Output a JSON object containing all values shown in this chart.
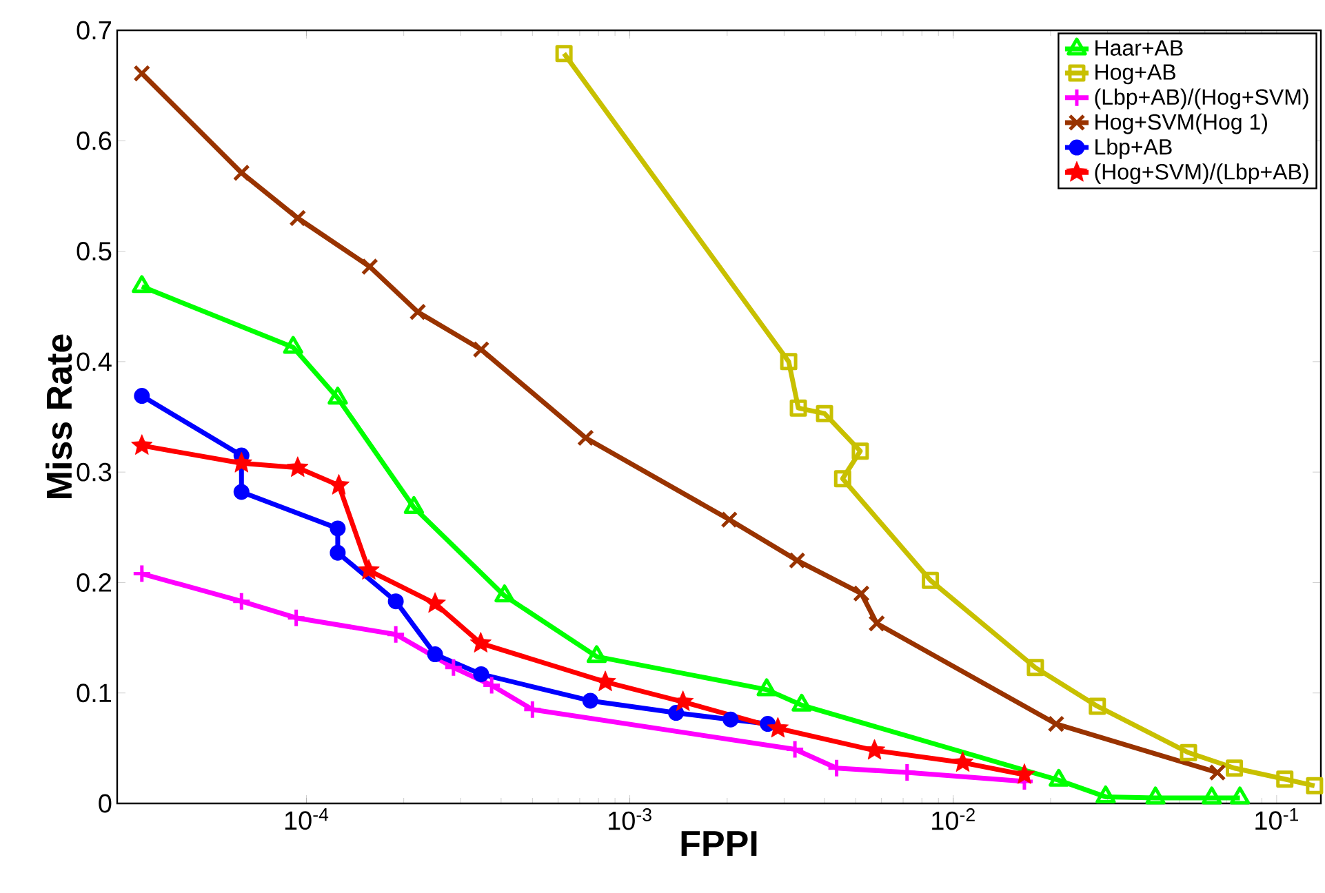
{
  "chart_data": {
    "type": "line",
    "xlabel": "FPPI",
    "ylabel": "Miss Rate",
    "log": "x",
    "xlim": [
      2.6e-05,
      0.137
    ],
    "ylim": [
      0,
      0.7
    ],
    "xticks": [
      {
        "value": 0.0001,
        "label": "10$^{-4}$"
      },
      {
        "value": 0.001,
        "label": "10$^{-3}$"
      },
      {
        "value": 0.01,
        "label": "10$^{-2}$"
      },
      {
        "value": 0.1,
        "label": "10$^{-1}$"
      }
    ],
    "yticks": [
      0,
      0.1,
      0.2,
      0.3,
      0.4,
      0.5,
      0.6,
      0.7
    ],
    "grid": false,
    "legend": "top right",
    "line_style": "solid",
    "series": [
      {
        "name": "Haar+AB",
        "color": "#00ff00",
        "marker": "triangle",
        "x": [
          3.1e-05,
          9.1e-05,
          0.000125,
          0.000215,
          0.00041,
          0.00079,
          0.00265,
          0.0034,
          0.0212,
          0.0296,
          0.0422,
          0.063,
          0.077
        ],
        "values": [
          0.468,
          0.413,
          0.367,
          0.268,
          0.188,
          0.133,
          0.103,
          0.089,
          0.021,
          0.006,
          0.005,
          0.005,
          0.005
        ]
      },
      {
        "name": "Hog+AB",
        "color": "#c8c000",
        "marker": "square",
        "x": [
          0.000626,
          0.0031,
          0.00332,
          0.004,
          0.00516,
          0.00455,
          0.0085,
          0.01795,
          0.0279,
          0.0534,
          0.074,
          0.106,
          0.131
        ],
        "values": [
          0.679,
          0.4,
          0.358,
          0.353,
          0.319,
          0.294,
          0.202,
          0.123,
          0.088,
          0.046,
          0.032,
          0.022,
          0.016
        ]
      },
      {
        "name": "(Lbp+AB)/(Hog+SVM)",
        "color": "#ff00ff",
        "marker": "plus",
        "x": [
          3.1e-05,
          6.3e-05,
          9.3e-05,
          0.000189,
          0.000285,
          0.000374,
          0.0005,
          0.00324,
          0.00436,
          0.0072,
          0.0166
        ],
        "values": [
          0.208,
          0.183,
          0.168,
          0.153,
          0.123,
          0.107,
          0.085,
          0.049,
          0.032,
          0.028,
          0.02
        ]
      },
      {
        "name": "Hog+SVM(Hog 1)",
        "color": "#993300",
        "marker": "cross",
        "x": [
          3.1e-05,
          6.3e-05,
          9.4e-05,
          0.000157,
          0.000221,
          0.000347,
          0.00073,
          0.00203,
          0.00329,
          0.0052,
          0.0058,
          0.0208,
          0.0656
        ],
        "values": [
          0.661,
          0.571,
          0.53,
          0.486,
          0.445,
          0.411,
          0.331,
          0.257,
          0.22,
          0.19,
          0.163,
          0.072,
          0.028
        ]
      },
      {
        "name": "Lbp+AB",
        "color": "#0000ff",
        "marker": "circle",
        "x": [
          3.1e-05,
          6.3e-05,
          6.3e-05,
          0.000125,
          0.000125,
          0.000189,
          0.00025,
          0.000347,
          0.000755,
          0.00139,
          0.00205,
          0.00267
        ],
        "values": [
          0.369,
          0.315,
          0.282,
          0.249,
          0.227,
          0.183,
          0.135,
          0.117,
          0.093,
          0.082,
          0.076,
          0.072
        ]
      },
      {
        "name": "(Hog+SVM)/(Lbp+AB)",
        "color": "#ff0000",
        "marker": "star",
        "x": [
          3.1e-05,
          6.3e-05,
          9.4e-05,
          0.000126,
          0.000156,
          0.00025,
          0.000346,
          0.00084,
          0.00146,
          0.00287,
          0.00571,
          0.0107,
          0.0166
        ],
        "values": [
          0.324,
          0.308,
          0.304,
          0.288,
          0.211,
          0.181,
          0.145,
          0.11,
          0.092,
          0.068,
          0.048,
          0.037,
          0.026
        ]
      }
    ]
  }
}
